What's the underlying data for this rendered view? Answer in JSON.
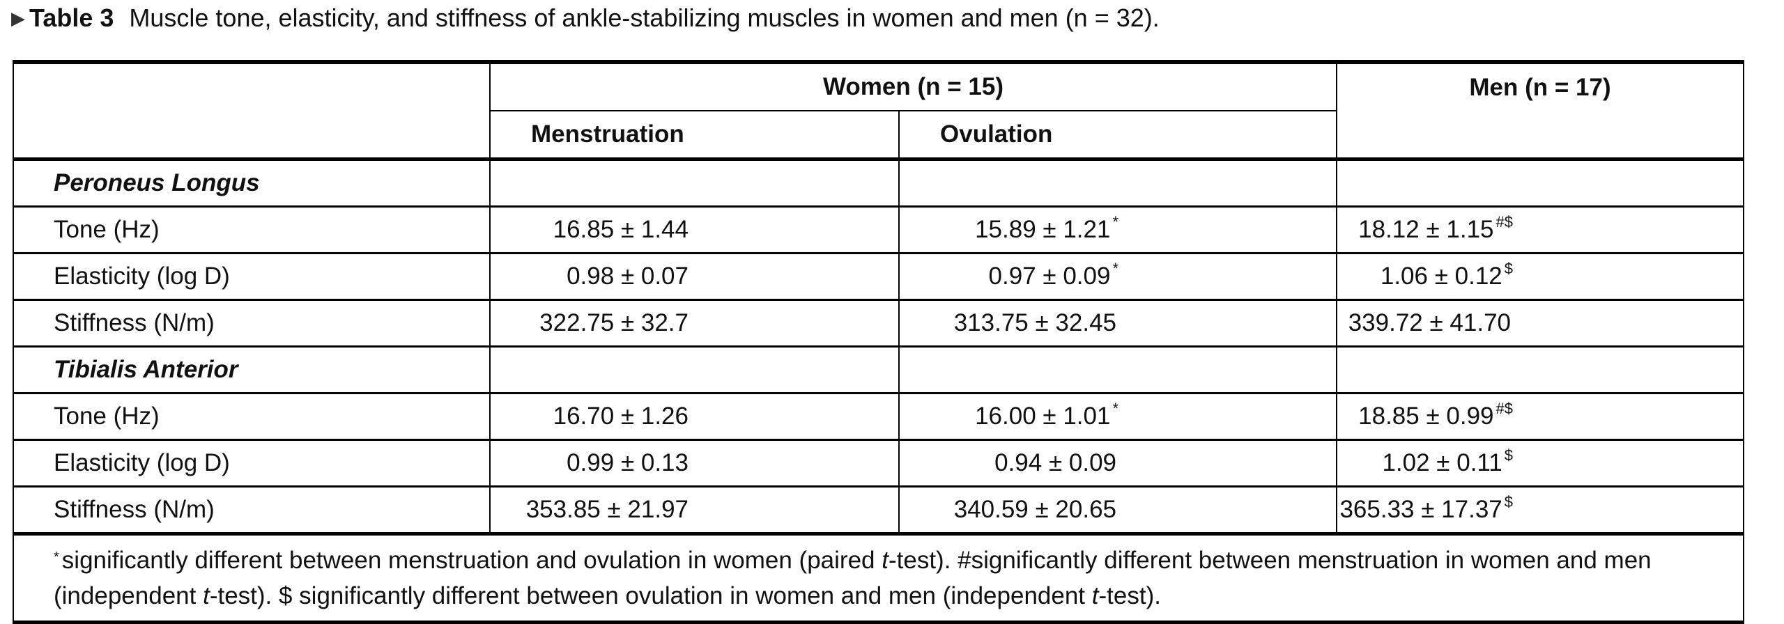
{
  "caption": {
    "marker": "▶",
    "label": "Table 3",
    "text": "Muscle tone, elasticity, and stiffness of ankle-stabilizing muscles in women and men (n = 32)."
  },
  "header": {
    "women": "Women (n = 15)",
    "men": "Men (n = 17)",
    "menstruation": "Menstruation",
    "ovulation": "Ovulation"
  },
  "sections": [
    {
      "title": "Peroneus Longus",
      "rows": [
        {
          "label": "Tone (Hz)",
          "menstruation": "16.85 ± 1.44",
          "m_sup": "",
          "ovulation": "15.89 ± 1.21",
          "o_sup": "*",
          "men": "18.12 ± 1.15",
          "men_sup": "#$"
        },
        {
          "label": "Elasticity (log D)",
          "menstruation": "0.98 ± 0.07",
          "m_sup": "",
          "ovulation": "0.97 ± 0.09",
          "o_sup": "*",
          "men": "1.06 ± 0.12",
          "men_sup": "$"
        },
        {
          "label": "Stiffness (N/m)",
          "menstruation": "322.75 ± 32.7",
          "m_sup": "",
          "ovulation": "313.75 ± 32.45",
          "o_sup": "",
          "men": "339.72 ± 41.70",
          "men_sup": ""
        }
      ]
    },
    {
      "title": "Tibialis Anterior",
      "rows": [
        {
          "label": "Tone (Hz)",
          "menstruation": "16.70 ± 1.26",
          "m_sup": "",
          "ovulation": "16.00 ± 1.01",
          "o_sup": "*",
          "men": "18.85 ± 0.99",
          "men_sup": "#$"
        },
        {
          "label": "Elasticity (log D)",
          "menstruation": "0.99 ± 0.13",
          "m_sup": "",
          "ovulation": "0.94 ± 0.09",
          "o_sup": "",
          "men": "1.02 ± 0.11",
          "men_sup": "$"
        },
        {
          "label": "Stiffness (N/m)",
          "menstruation": "353.85 ± 21.97",
          "m_sup": "",
          "ovulation": "340.59 ± 20.65",
          "o_sup": "",
          "men": "365.33 ± 17.37",
          "men_sup": "$"
        }
      ]
    }
  ],
  "footnote": {
    "star": "*",
    "part1": "significantly different between menstruation and ovulation in women (paired ",
    "t1": "t",
    "part2": "-test). #significantly different between menstruation in women and men (independent ",
    "t2": "t",
    "part3": "-test). $ significantly different between ovulation in women and men (independent ",
    "t3": "t",
    "part4": "-test)."
  }
}
